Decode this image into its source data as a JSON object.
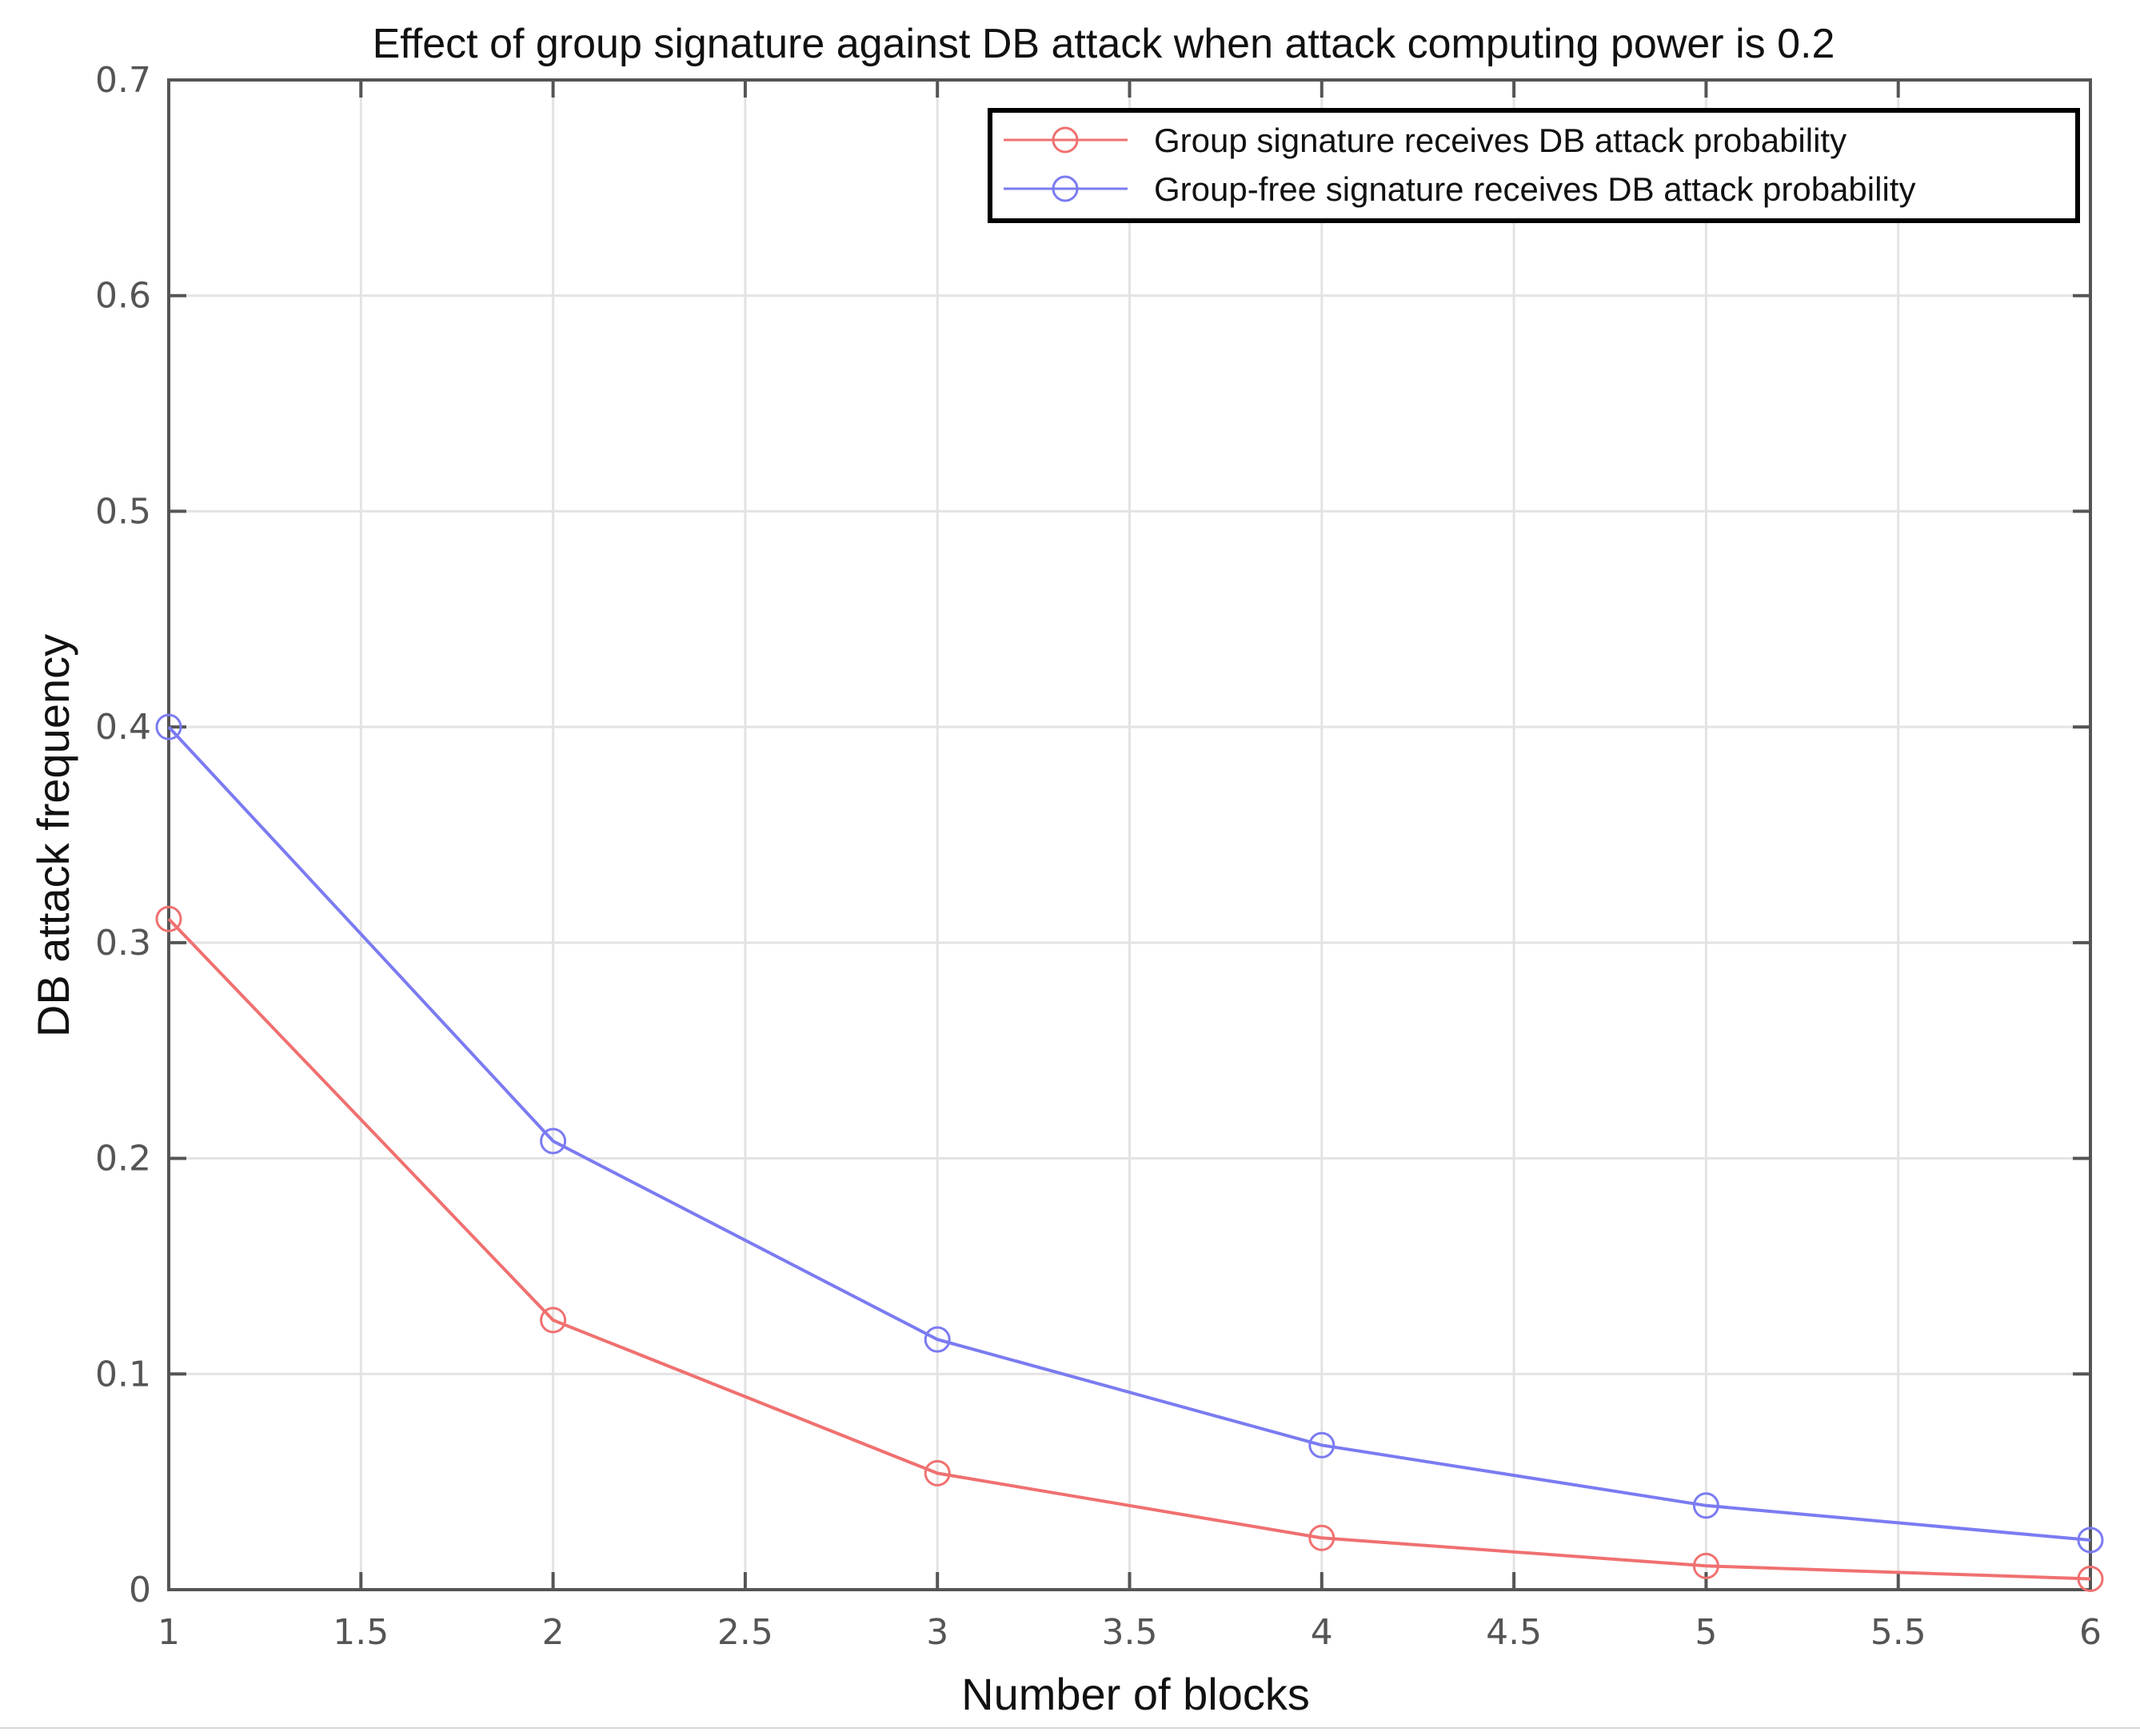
{
  "chart_data": {
    "type": "line",
    "title": "Effect of group signature against DB attack when attack computing power is 0.2",
    "xlabel": "Number of blocks",
    "ylabel": "DB attack frequency",
    "xlim": [
      1,
      6
    ],
    "ylim": [
      0,
      0.7
    ],
    "xticks": [
      "1",
      "1.5",
      "2",
      "2.5",
      "3",
      "3.5",
      "4",
      "4.5",
      "5",
      "5.5",
      "6"
    ],
    "yticks": [
      "0",
      "0.1",
      "0.2",
      "0.3",
      "0.4",
      "0.5",
      "0.6",
      "0.7"
    ],
    "grid": true,
    "legend_position": "top-right",
    "x": [
      1,
      2,
      3,
      4,
      5,
      6
    ],
    "series": [
      {
        "name": "Group signature receives DB attack probability",
        "color": "#f07070",
        "marker": "circle",
        "values": [
          0.311,
          0.125,
          0.054,
          0.024,
          0.011,
          0.005
        ]
      },
      {
        "name": "Group-free signature receives DB attack probability",
        "color": "#7b7bf2",
        "marker": "circle",
        "values": [
          0.4,
          0.208,
          0.116,
          0.067,
          0.039,
          0.023
        ]
      }
    ]
  }
}
